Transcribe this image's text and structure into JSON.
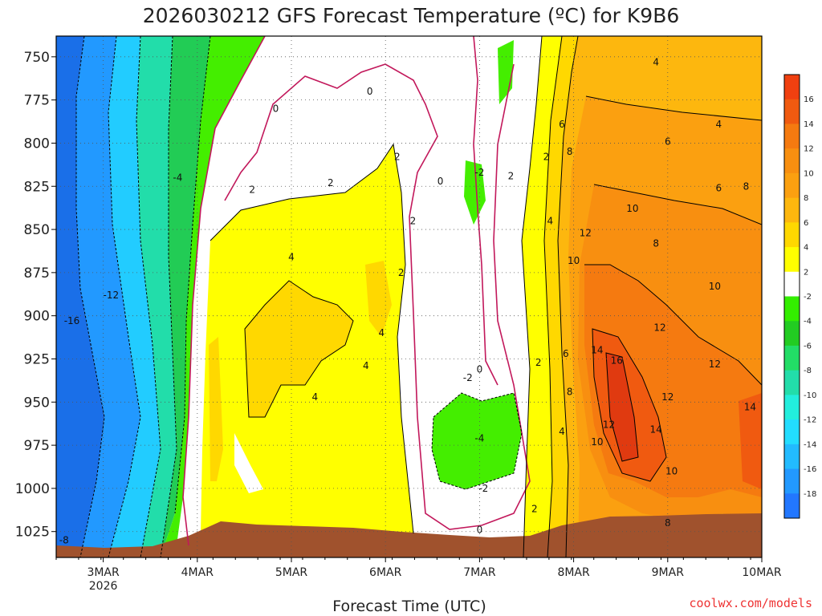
{
  "chart_data": {
    "type": "heatmap",
    "title": "2026030212 GFS Forecast Temperature (ºC) for K9B6",
    "xlabel": "Forecast Time (UTC)",
    "credit": "coolwx.com/models",
    "y_axis": {
      "ticks": [
        "750",
        "775",
        "800",
        "825",
        "850",
        "875",
        "900",
        "925",
        "950",
        "975",
        "1000",
        "1025"
      ],
      "range": [
        738,
        1040
      ],
      "inverted": true,
      "units": "hPa"
    },
    "x_axis": {
      "ticks": [
        {
          "label": "3MAR",
          "sublabel": "2026"
        },
        {
          "label": "4MAR",
          "sublabel": ""
        },
        {
          "label": "5MAR",
          "sublabel": ""
        },
        {
          "label": "6MAR",
          "sublabel": ""
        },
        {
          "label": "7MAR",
          "sublabel": ""
        },
        {
          "label": "8MAR",
          "sublabel": ""
        },
        {
          "label": "9MAR",
          "sublabel": ""
        },
        {
          "label": "10MAR",
          "sublabel": ""
        }
      ],
      "range": [
        "2026-03-02T12",
        "2026-03-10T00"
      ]
    },
    "grid": true,
    "colorbar": {
      "labels": [
        "16",
        "14",
        "12",
        "10",
        "8",
        "6",
        "4",
        "2",
        "-2",
        "-4",
        "-6",
        "-8",
        "-10",
        "-12",
        "-14",
        "-16",
        "-18"
      ],
      "colors": [
        "#f04010",
        "#f05a10",
        "#f57a10",
        "#f88f10",
        "#fba010",
        "#fdb70e",
        "#ffd800",
        "#ffff00",
        "#ffffff",
        "#33ee00",
        "#22cc22",
        "#22dd66",
        "#22ddaa",
        "#22eedd",
        "#22ddff",
        "#22bbff",
        "#2299ff",
        "#2277ff"
      ]
    },
    "contour_labels": [
      {
        "text": "-4",
        "x": "2026-03-03T19",
        "p": 820
      },
      {
        "text": "-8",
        "x": "2026-03-02T14",
        "p": 1030
      },
      {
        "text": "-12",
        "x": "2026-03-03T02",
        "p": 888
      },
      {
        "text": "-16",
        "x": "2026-03-02T16",
        "p": 903
      },
      {
        "text": "0",
        "x": "2026-03-04T20",
        "p": 780
      },
      {
        "text": "0",
        "x": "2026-03-05T20",
        "p": 770
      },
      {
        "text": "2",
        "x": "2026-03-04T14",
        "p": 827
      },
      {
        "text": "2",
        "x": "2026-03-05T10",
        "p": 823
      },
      {
        "text": "2",
        "x": "2026-03-06T03",
        "p": 808
      },
      {
        "text": "2",
        "x": "2026-03-06T07",
        "p": 845
      },
      {
        "text": "2",
        "x": "2026-03-06T04",
        "p": 875
      },
      {
        "text": "4",
        "x": "2026-03-05T00",
        "p": 866
      },
      {
        "text": "4",
        "x": "2026-03-05T23",
        "p": 910
      },
      {
        "text": "4",
        "x": "2026-03-05T19",
        "p": 929
      },
      {
        "text": "4",
        "x": "2026-03-05T06",
        "p": 947
      },
      {
        "text": "0",
        "x": "2026-03-06T14",
        "p": 822
      },
      {
        "text": "-2",
        "x": "2026-03-07T00",
        "p": 817
      },
      {
        "text": "2",
        "x": "2026-03-07T08",
        "p": 819
      },
      {
        "text": "-2",
        "x": "2026-03-06T21",
        "p": 936
      },
      {
        "text": "0",
        "x": "2026-03-07T00",
        "p": 931
      },
      {
        "text": "-4",
        "x": "2026-03-06T24",
        "p": 971
      },
      {
        "text": "-2",
        "x": "2026-03-07T01",
        "p": 1000
      },
      {
        "text": "0",
        "x": "2026-03-07T00",
        "p": 1024
      },
      {
        "text": "2",
        "x": "2026-03-07T14",
        "p": 1012
      },
      {
        "text": "2",
        "x": "2026-03-07T15",
        "p": 927
      },
      {
        "text": "2",
        "x": "2026-03-07T17",
        "p": 808
      },
      {
        "text": "4",
        "x": "2026-03-07T18",
        "p": 845
      },
      {
        "text": "4",
        "x": "2026-03-07T21",
        "p": 967
      },
      {
        "text": "6",
        "x": "2026-03-07T21",
        "p": 789
      },
      {
        "text": "6",
        "x": "2026-03-07T22",
        "p": 922
      },
      {
        "text": "8",
        "x": "2026-03-07T23",
        "p": 805
      },
      {
        "text": "8",
        "x": "2026-03-07T23",
        "p": 944
      },
      {
        "text": "10",
        "x": "2026-03-07T24",
        "p": 868
      },
      {
        "text": "10",
        "x": "2026-03-08T06",
        "p": 973
      },
      {
        "text": "12",
        "x": "2026-03-08T03",
        "p": 852
      },
      {
        "text": "12",
        "x": "2026-03-08T09",
        "p": 963
      },
      {
        "text": "14",
        "x": "2026-03-08T06",
        "p": 920
      },
      {
        "text": "14",
        "x": "2026-03-08T21",
        "p": 966
      },
      {
        "text": "16",
        "x": "2026-03-08T11",
        "p": 926
      },
      {
        "text": "10",
        "x": "2026-03-08T15",
        "p": 838
      },
      {
        "text": "8",
        "x": "2026-03-08T21",
        "p": 858
      },
      {
        "text": "12",
        "x": "2026-03-08T22",
        "p": 907
      },
      {
        "text": "12",
        "x": "2026-03-09T00",
        "p": 947
      },
      {
        "text": "10",
        "x": "2026-03-09T01",
        "p": 990
      },
      {
        "text": "8",
        "x": "2026-03-09T00",
        "p": 1020
      },
      {
        "text": "4",
        "x": "2026-03-08T21",
        "p": 753
      },
      {
        "text": "6",
        "x": "2026-03-08T24",
        "p": 799
      },
      {
        "text": "4",
        "x": "2026-03-09T13",
        "p": 789
      },
      {
        "text": "6",
        "x": "2026-03-09T13",
        "p": 826
      },
      {
        "text": "8",
        "x": "2026-03-09T20",
        "p": 825
      },
      {
        "text": "10",
        "x": "2026-03-09T12",
        "p": 883
      },
      {
        "text": "12",
        "x": "2026-03-09T12",
        "p": 928
      },
      {
        "text": "14",
        "x": "2026-03-09T21",
        "p": 953
      }
    ]
  }
}
